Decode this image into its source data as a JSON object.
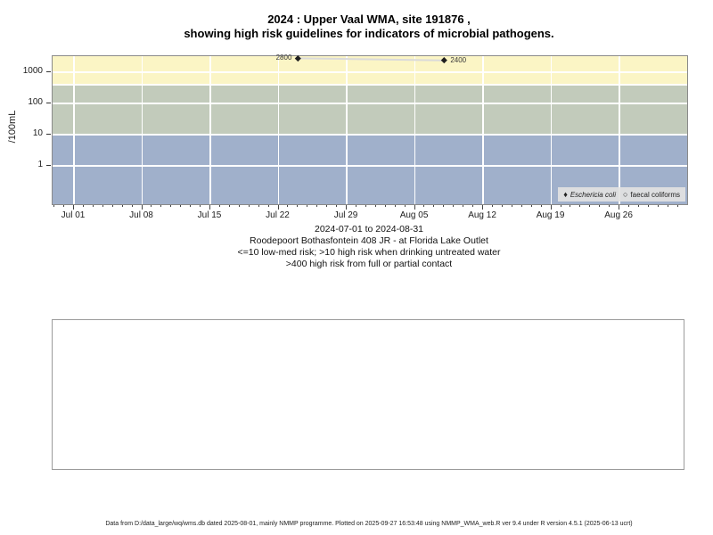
{
  "title": {
    "line1": "2024 : Upper Vaal WMA, site 191876 ,",
    "line2": "showing high risk guidelines for indicators of microbial pathogens."
  },
  "chart_data": {
    "type": "scatter",
    "title": "2024 : Upper Vaal WMA, site 191876 , showing high risk guidelines for indicators of microbial pathogens.",
    "ylabel": "/100mL",
    "y_scale": "log10",
    "y_ticks": [
      1,
      10,
      100,
      1000
    ],
    "x_tick_labels": [
      "Jul 01",
      "Jul 08",
      "Jul 15",
      "Jul 22",
      "Jul 29",
      "Aug 05",
      "Aug 12",
      "Aug 19",
      "Aug 26"
    ],
    "x_range": "2024-06-29 to 2024-09-02 (daily minor ticks, weekly major ticks)",
    "grid": "white gridlines on colored risk bands",
    "bands": [
      {
        "name": "risk-band-high",
        "from": 400,
        "to": 3300,
        "color": "#FBF5C5",
        "meaning": ">400 high risk from full or partial contact"
      },
      {
        "name": "risk-band-medium",
        "from": 10,
        "to": 400,
        "color": "#C2CBBB",
        "meaning": ">10 high risk when drinking untreated water"
      },
      {
        "name": "risk-band-low",
        "from": 0.06,
        "to": 10,
        "color": "#A0B0CB",
        "meaning": "<=10 low-med risk"
      }
    ],
    "gridline_values": [
      1000,
      400,
      100,
      10,
      1
    ],
    "series": [
      {
        "name": "Eschericia coli",
        "marker": "filled-diamond",
        "italic": true,
        "line_color": "#DADADA",
        "marker_color": "#1F1F1F",
        "points": [
          {
            "date": "2024-07-24",
            "day_from_jul01": 23,
            "value": 2800,
            "label": "2800",
            "label_side": "left"
          },
          {
            "date": "2024-08-08",
            "day_from_jul01": 38,
            "value": 2400,
            "label": "2400",
            "label_side": "right"
          }
        ]
      },
      {
        "name": "faecal coliforms",
        "marker": "open-circle",
        "italic": false,
        "points": []
      }
    ],
    "legend": {
      "position": "bottom-right",
      "items": [
        {
          "symbol": "♦",
          "label": "Eschericia coli",
          "italic": true
        },
        {
          "symbol": "○",
          "label": "faecal coliforms",
          "italic": false
        }
      ]
    }
  },
  "caption_lines": [
    "2024-07-01 to 2024-08-31",
    "Roodepoort Bothasfontein 408 JR - at Florida Lake Outlet",
    "<=10 low-med risk; >10 high risk when drinking untreated water",
    ">400 high risk from full or partial contact"
  ],
  "footer": "Data from D:/data_large/wq/wms.db dated 2025-08-01, mainly NMMP programme. Plotted on 2025-09-27 16:53:48 using NMMP_WMA_web.R ver 9.4 under R version 4.5.1 (2025-06-13 ucrt)"
}
